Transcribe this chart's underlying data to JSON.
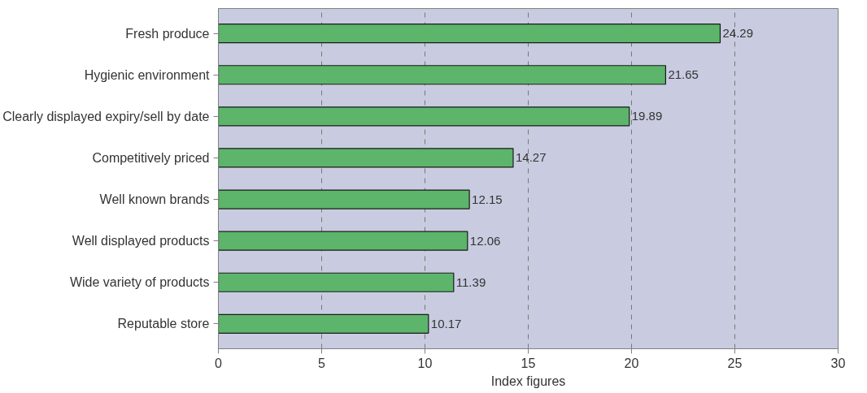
{
  "chart_data": {
    "type": "bar",
    "orientation": "horizontal",
    "xlabel": "Index figures",
    "categories": [
      "Fresh produce",
      "Hygienic environment",
      "Clearly displayed expiry/sell by date",
      "Competitively priced",
      "Well known brands",
      "Well displayed products",
      "Wide variety of products",
      "Reputable store"
    ],
    "values": [
      24.29,
      21.65,
      19.89,
      14.27,
      12.15,
      12.06,
      11.39,
      10.17
    ],
    "color": "#5cb56a",
    "xlim": [
      0,
      30
    ],
    "xticks": [
      0,
      5,
      10,
      15,
      20,
      25,
      30
    ],
    "grid": "x",
    "data_labels": true
  }
}
